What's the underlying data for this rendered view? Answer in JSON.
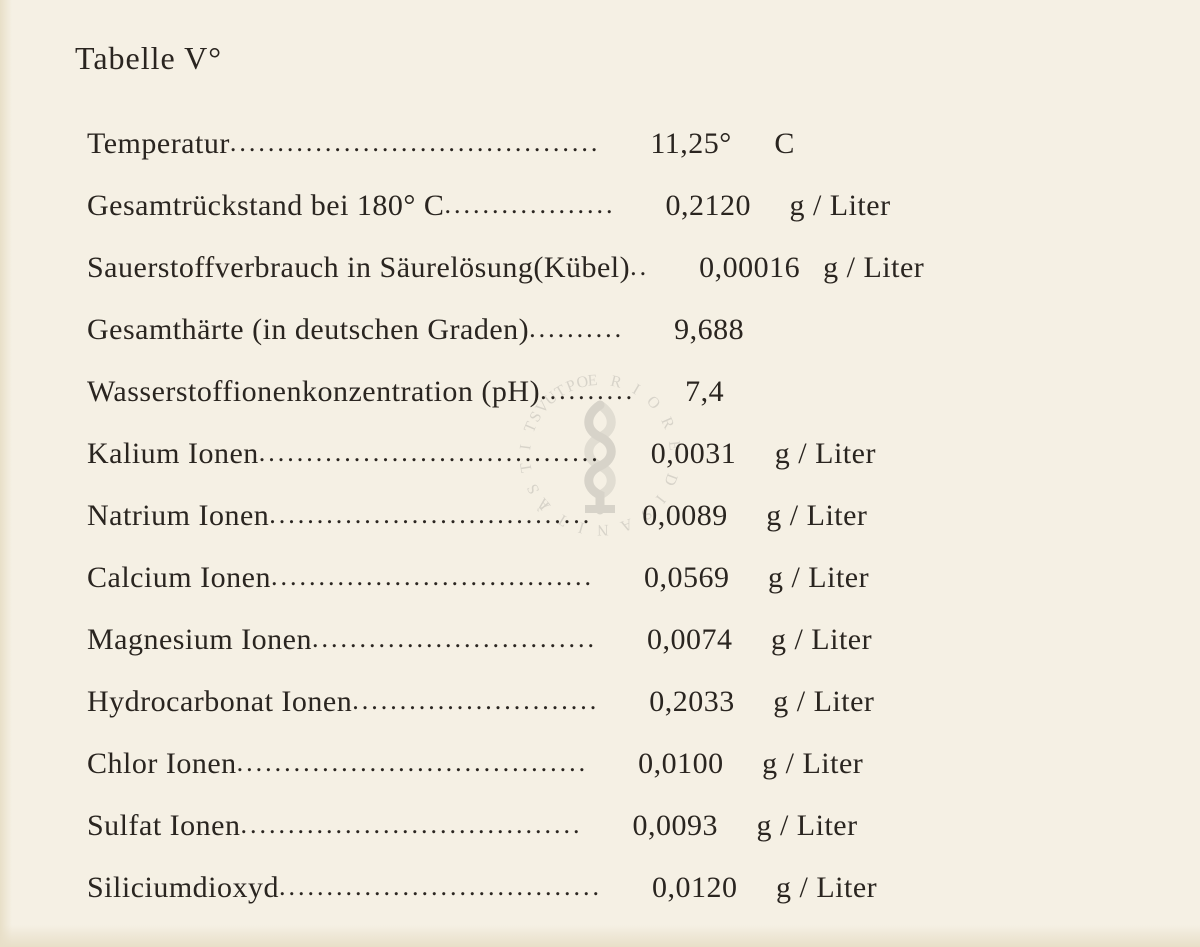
{
  "document": {
    "title": "Tabelle V°",
    "background_color": "#f5f0e4",
    "text_color": "#2a2520",
    "font_family": "Times New Roman",
    "title_fontsize": 32,
    "row_fontsize": 30,
    "rows": [
      {
        "label": "Temperatur",
        "dots": ".......................................",
        "value": "11,25°",
        "unit": "C"
      },
      {
        "label": "Gesamtrückstand bei 180° C",
        "dots": "..................",
        "value": "0,2120",
        "unit": "g / Liter"
      },
      {
        "label": "Sauerstoffverbrauch in Säurelösung(Kübel)",
        "dots": "..",
        "value": "0,00016",
        "unit": "g / Liter"
      },
      {
        "label": "Gesamthärte (in deutschen Graden)",
        "dots": "..........",
        "value": "9,688",
        "unit": ""
      },
      {
        "label": "Wasserstoffionenkonzentration (pH)",
        "dots": "..........",
        "value": "7,4",
        "unit": ""
      },
      {
        "label": "Kalium Ionen",
        "dots": "....................................",
        "value": "0,0031",
        "unit": "g / Liter"
      },
      {
        "label": "Natrium Ionen",
        "dots": "..................................",
        "value": "0,0089",
        "unit": "g / Liter"
      },
      {
        "label": "Calcium Ionen",
        "dots": "..................................",
        "value": "0,0569",
        "unit": "g / Liter"
      },
      {
        "label": "Magnesium Ionen",
        "dots": "..............................",
        "value": "0,0074",
        "unit": "g / Liter"
      },
      {
        "label": "Hydrocarbonat Ionen",
        "dots": "..........................",
        "value": "0,2033",
        "unit": "g / Liter"
      },
      {
        "label": "Chlor Ionen",
        "dots": ".....................................",
        "value": "0,0100",
        "unit": "g / Liter"
      },
      {
        "label": "Sulfat Ionen",
        "dots": "....................................",
        "value": "0,0093",
        "unit": "g / Liter"
      },
      {
        "label": "Siliciumdioxyd",
        "dots": "..................................",
        "value": "0,0120",
        "unit": "g / Liter"
      }
    ],
    "watermark": {
      "text_top": "SUPERIORE",
      "text_right": "DI SANITÀ",
      "text_left": "ISTITVTO",
      "color": "#8a8270",
      "opacity": 0.18
    }
  }
}
